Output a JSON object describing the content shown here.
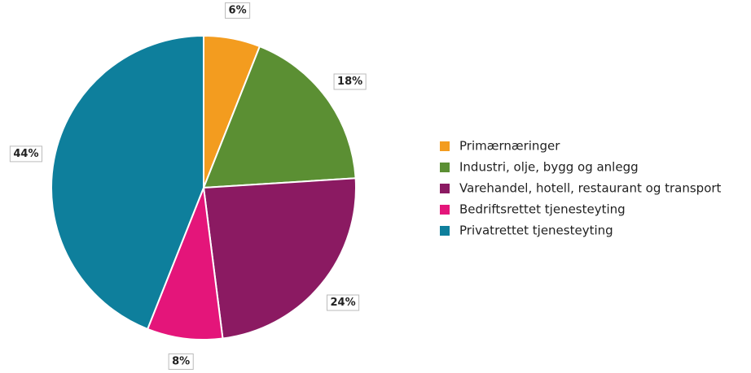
{
  "chart_data": {
    "type": "pie",
    "categories": [
      "Primærnæringer",
      "Industri, olje, bygg og anlegg",
      "Varehandel, hotell, restaurant og transport",
      "Bedriftsrettet tjenesteyting",
      "Privatrettet tjenesteyting"
    ],
    "values": [
      6,
      18,
      24,
      8,
      44
    ],
    "value_labels": [
      "6%",
      "18%",
      "24%",
      "8%",
      "44%"
    ],
    "colors": [
      "#f39c1f",
      "#5b8f33",
      "#8b1a62",
      "#e4157a",
      "#0e7f9c"
    ],
    "legend": "right"
  }
}
